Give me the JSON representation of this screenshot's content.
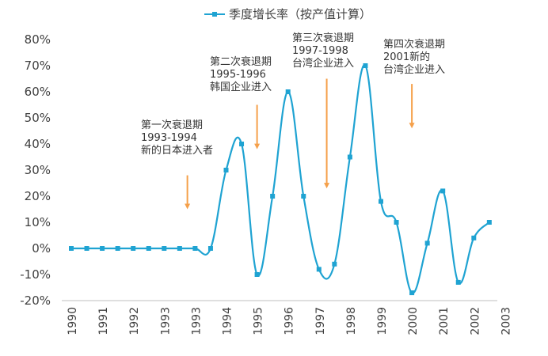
{
  "chart_data": {
    "type": "line",
    "legend": "季度增长率（按产值计算）",
    "categories": [
      "1990",
      "1991",
      "1992",
      "1993",
      "1993",
      "1994",
      "1995",
      "1996",
      "1997",
      "1998",
      "1999",
      "2000",
      "2001",
      "2002",
      "2003"
    ],
    "ylim": [
      -20,
      80
    ],
    "yticks": [
      -20,
      -10,
      0,
      10,
      20,
      30,
      40,
      50,
      60,
      70,
      80
    ],
    "ytick_labels": [
      "-20%",
      "-10%",
      "0%",
      "10%",
      "20%",
      "30%",
      "40%",
      "50%",
      "60%",
      "70%",
      "80%"
    ],
    "series": [
      {
        "name": "季度增长率（按产值计算）",
        "color": "#1fa3d2",
        "x": [
          0,
          0.5,
          1,
          1.5,
          2,
          2.5,
          3,
          3.5,
          4,
          4.5,
          5,
          5.5,
          6,
          6.5,
          7,
          7.5,
          8,
          8.5,
          9,
          9.5,
          10,
          10.5,
          11,
          11.5,
          12,
          12.5,
          13,
          13.5
        ],
        "values": [
          0,
          0,
          0,
          0,
          0,
          0,
          0,
          0,
          0,
          0,
          30,
          40,
          -10,
          20,
          60,
          20,
          -8,
          -6,
          35,
          70,
          18,
          10,
          -17,
          2,
          22,
          -13,
          4,
          10
        ]
      }
    ],
    "annotations": [
      {
        "id": "first",
        "lines": [
          "第一次衰退期",
          "1993-1994",
          "新的日本进入者"
        ],
        "arrow_x": 7.5,
        "arrow_from": 28,
        "arrow_to": 15
      },
      {
        "id": "second",
        "lines": [
          "第二次衰退期",
          "1995-1996",
          "韩国企业进入"
        ],
        "arrow_x": 12,
        "arrow_from": 55,
        "arrow_to": 38
      },
      {
        "id": "third",
        "lines": [
          "第三次衰退期",
          "1997-1998",
          "台湾企业进入"
        ],
        "arrow_x": 16.5,
        "arrow_from": 65,
        "arrow_to": 23
      },
      {
        "id": "fourth",
        "lines": [
          "第四次衰退期",
          "2001新的",
          "台湾企业进入"
        ],
        "arrow_x": 22,
        "arrow_from": 63,
        "arrow_to": 46
      }
    ],
    "colors": {
      "line": "#1fa3d2",
      "arrow": "#f5a04a",
      "axis": "#bfbfbf",
      "text": "#404040"
    }
  }
}
